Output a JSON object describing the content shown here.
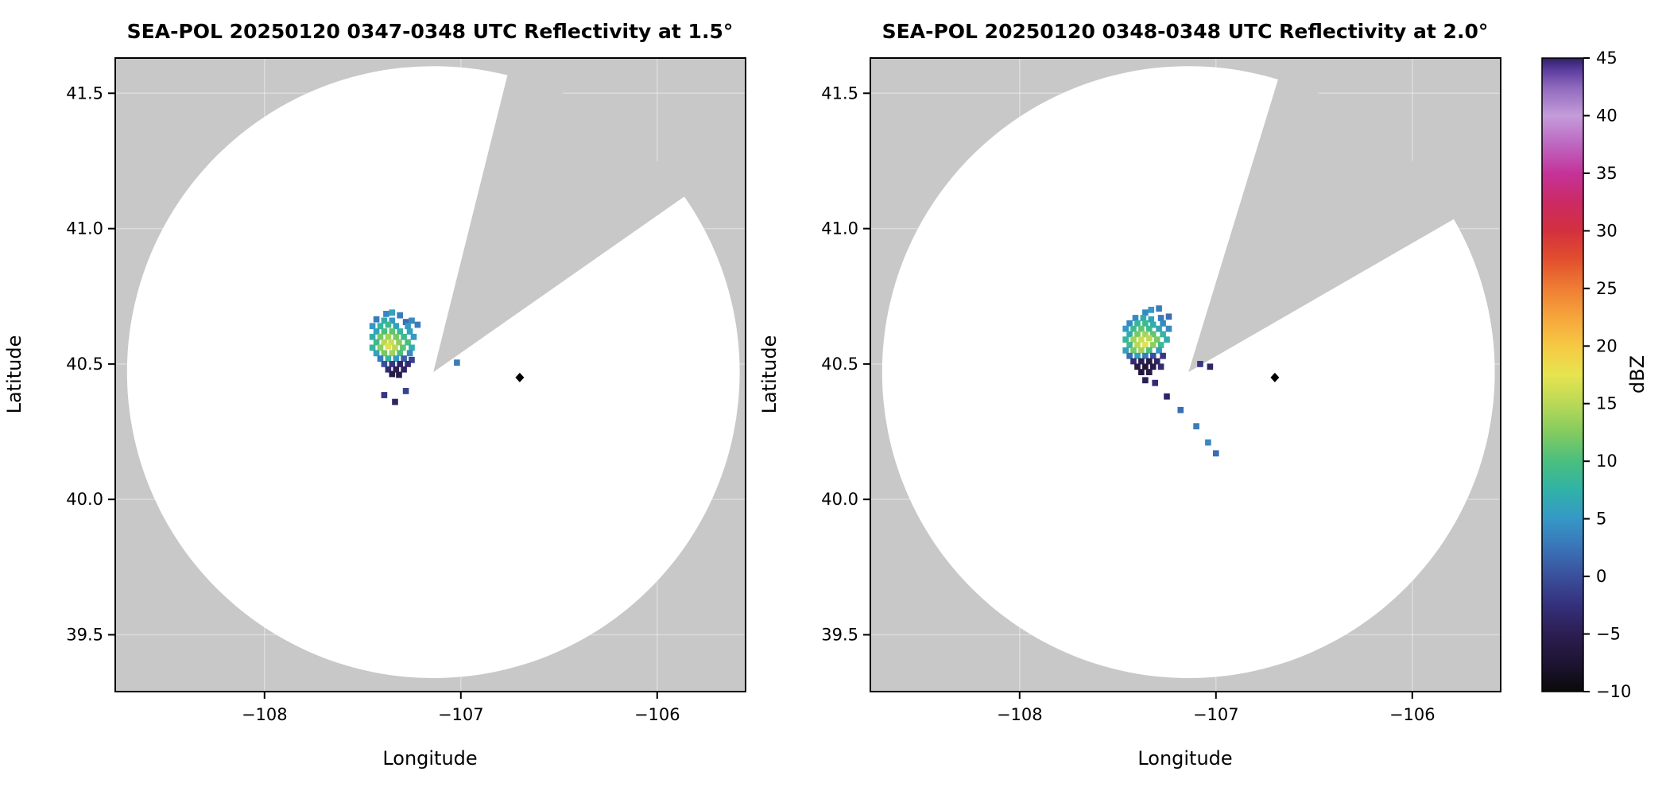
{
  "figure": {
    "background": "#ffffff",
    "panel_background": "#c8c8c8",
    "coverage_fill": "#ffffff",
    "grid_color": "rgba(255,255,255,0.35)",
    "spine_color": "#000000",
    "tick_color": "#000000"
  },
  "colorbar": {
    "label": "dBZ",
    "vmin": -10,
    "vmax": 45,
    "tick_values": [
      -10,
      -5,
      0,
      5,
      10,
      15,
      20,
      25,
      30,
      35,
      40,
      45
    ],
    "tick_labels": [
      "−10",
      "−5",
      "0",
      "5",
      "10",
      "15",
      "20",
      "25",
      "30",
      "35",
      "40",
      "45"
    ],
    "stops": [
      {
        "v": -10,
        "c": "#0a0a0a"
      },
      {
        "v": -7.5,
        "c": "#1e1433"
      },
      {
        "v": -5,
        "c": "#2c1e52"
      },
      {
        "v": -2.5,
        "c": "#35307d"
      },
      {
        "v": 0,
        "c": "#3a4f9b"
      },
      {
        "v": 2.5,
        "c": "#3a74b8"
      },
      {
        "v": 5,
        "c": "#3598c7"
      },
      {
        "v": 7.5,
        "c": "#31b2a7"
      },
      {
        "v": 10,
        "c": "#49bf7e"
      },
      {
        "v": 12.5,
        "c": "#83cb5f"
      },
      {
        "v": 15,
        "c": "#b9d957"
      },
      {
        "v": 17.5,
        "c": "#e7e44f"
      },
      {
        "v": 20,
        "c": "#f6c944"
      },
      {
        "v": 22.5,
        "c": "#f6a53c"
      },
      {
        "v": 25,
        "c": "#ef7d33"
      },
      {
        "v": 27.5,
        "c": "#e24f2d"
      },
      {
        "v": 30,
        "c": "#d3303e"
      },
      {
        "v": 32.5,
        "c": "#cc2a64"
      },
      {
        "v": 35,
        "c": "#c43399"
      },
      {
        "v": 37.5,
        "c": "#bd67c1"
      },
      {
        "v": 40,
        "c": "#c59cda"
      },
      {
        "v": 42.5,
        "c": "#8e68bd"
      },
      {
        "v": 44,
        "c": "#5b3c9c"
      },
      {
        "v": 45,
        "c": "#2e2066"
      }
    ]
  },
  "chart_data": [
    {
      "type": "heatmap",
      "subtype": "radar_ppi",
      "title": "SEA-POL 20250120 0347-0348 UTC Reflectivity at 1.5°",
      "xlabel": "Longitude",
      "ylabel": "Latitude",
      "units": "dBZ",
      "xlim": [
        -108.76,
        -105.55
      ],
      "ylim": [
        39.29,
        41.63
      ],
      "xtick_values": [
        -108,
        -107,
        -106
      ],
      "xtick_labels": [
        "−108",
        "−107",
        "−106"
      ],
      "ytick_values": [
        39.5,
        40.0,
        40.5,
        41.0,
        41.5
      ],
      "ytick_labels": [
        "39.5",
        "40.0",
        "40.5",
        "41.0",
        "41.5"
      ],
      "radar": {
        "lon": -107.14,
        "lat": 40.47,
        "radius_lon_deg": 1.56,
        "radius_lat_deg": 1.13
      },
      "blocked_sector_az_deg": [
        14,
        55
      ],
      "site_marker": {
        "lon": -106.7,
        "lat": 40.45,
        "shape": "diamond",
        "color": "#000000"
      },
      "echoes": [
        [
          -107.38,
          40.685,
          4
        ],
        [
          -107.35,
          40.69,
          6
        ],
        [
          -107.31,
          40.68,
          3
        ],
        [
          -107.43,
          40.665,
          3
        ],
        [
          -107.39,
          40.66,
          7
        ],
        [
          -107.35,
          40.66,
          5
        ],
        [
          -107.28,
          40.655,
          2
        ],
        [
          -107.25,
          40.66,
          4
        ],
        [
          -107.45,
          40.64,
          5
        ],
        [
          -107.41,
          40.64,
          8
        ],
        [
          -107.37,
          40.645,
          9
        ],
        [
          -107.33,
          40.64,
          6
        ],
        [
          -107.27,
          40.64,
          5
        ],
        [
          -107.22,
          40.645,
          3
        ],
        [
          -107.43,
          40.62,
          6
        ],
        [
          -107.39,
          40.62,
          10
        ],
        [
          -107.35,
          40.62,
          11
        ],
        [
          -107.31,
          40.62,
          8
        ],
        [
          -107.26,
          40.62,
          6
        ],
        [
          -107.45,
          40.6,
          7
        ],
        [
          -107.41,
          40.6,
          12
        ],
        [
          -107.37,
          40.6,
          14
        ],
        [
          -107.33,
          40.6,
          12
        ],
        [
          -107.29,
          40.6,
          9
        ],
        [
          -107.24,
          40.6,
          5
        ],
        [
          -107.43,
          40.58,
          9
        ],
        [
          -107.39,
          40.58,
          15
        ],
        [
          -107.355,
          40.58,
          16
        ],
        [
          -107.315,
          40.58,
          13
        ],
        [
          -107.27,
          40.58,
          10
        ],
        [
          -107.45,
          40.56,
          8
        ],
        [
          -107.41,
          40.56,
          13
        ],
        [
          -107.37,
          40.565,
          17
        ],
        [
          -107.335,
          40.56,
          15
        ],
        [
          -107.295,
          40.56,
          11
        ],
        [
          -107.25,
          40.56,
          7
        ],
        [
          -107.43,
          40.54,
          6
        ],
        [
          -107.39,
          40.54,
          12
        ],
        [
          -107.35,
          40.54,
          14
        ],
        [
          -107.31,
          40.54,
          10
        ],
        [
          -107.26,
          40.54,
          4
        ],
        [
          -107.41,
          40.52,
          3
        ],
        [
          -107.37,
          40.52,
          8
        ],
        [
          -107.33,
          40.52,
          5
        ],
        [
          -107.29,
          40.52,
          1
        ],
        [
          -107.25,
          40.515,
          -1
        ],
        [
          -107.39,
          40.5,
          0
        ],
        [
          -107.35,
          40.5,
          -2
        ],
        [
          -107.31,
          40.5,
          -4
        ],
        [
          -107.27,
          40.5,
          -3
        ],
        [
          -107.37,
          40.48,
          -3
        ],
        [
          -107.33,
          40.48,
          -5
        ],
        [
          -107.29,
          40.48,
          -4
        ],
        [
          -107.35,
          40.463,
          -6
        ],
        [
          -107.315,
          40.46,
          -6
        ],
        [
          -107.39,
          40.385,
          -2
        ],
        [
          -107.335,
          40.36,
          -4
        ],
        [
          -107.28,
          40.4,
          -1
        ],
        [
          -107.02,
          40.505,
          3
        ]
      ]
    },
    {
      "type": "heatmap",
      "subtype": "radar_ppi",
      "title": "SEA-POL 20250120 0348-0348 UTC Reflectivity at 2.0°",
      "xlabel": "Longitude",
      "ylabel": "Latitude",
      "units": "dBZ",
      "xlim": [
        -108.76,
        -105.55
      ],
      "ylim": [
        39.29,
        41.63
      ],
      "xtick_values": [
        -108,
        -107,
        -106
      ],
      "xtick_labels": [
        "−108",
        "−107",
        "−106"
      ],
      "ytick_values": [
        39.5,
        40.0,
        40.5,
        41.0,
        41.5
      ],
      "ytick_labels": [
        "39.5",
        "40.0",
        "40.5",
        "41.0",
        "41.5"
      ],
      "radar": {
        "lon": -107.14,
        "lat": 40.47,
        "radius_lon_deg": 1.56,
        "radius_lat_deg": 1.13
      },
      "blocked_sector_az_deg": [
        17,
        60
      ],
      "site_marker": {
        "lon": -106.7,
        "lat": 40.45,
        "shape": "diamond",
        "color": "#000000"
      },
      "echoes": [
        [
          -107.33,
          40.7,
          5
        ],
        [
          -107.29,
          40.705,
          3
        ],
        [
          -107.36,
          40.69,
          4
        ],
        [
          -107.41,
          40.67,
          4
        ],
        [
          -107.37,
          40.67,
          7
        ],
        [
          -107.33,
          40.665,
          6
        ],
        [
          -107.28,
          40.67,
          3
        ],
        [
          -107.24,
          40.675,
          2
        ],
        [
          -107.44,
          40.65,
          4
        ],
        [
          -107.4,
          40.65,
          8
        ],
        [
          -107.36,
          40.65,
          9
        ],
        [
          -107.32,
          40.645,
          7
        ],
        [
          -107.27,
          40.65,
          4
        ],
        [
          -107.46,
          40.63,
          5
        ],
        [
          -107.42,
          40.63,
          9
        ],
        [
          -107.38,
          40.63,
          11
        ],
        [
          -107.34,
          40.63,
          9
        ],
        [
          -107.29,
          40.63,
          6
        ],
        [
          -107.24,
          40.63,
          4
        ],
        [
          -107.44,
          40.61,
          7
        ],
        [
          -107.4,
          40.61,
          12
        ],
        [
          -107.36,
          40.61,
          14
        ],
        [
          -107.32,
          40.61,
          11
        ],
        [
          -107.27,
          40.61,
          8
        ],
        [
          -107.46,
          40.59,
          8
        ],
        [
          -107.42,
          40.59,
          14
        ],
        [
          -107.38,
          40.59,
          16
        ],
        [
          -107.34,
          40.595,
          15
        ],
        [
          -107.3,
          40.59,
          12
        ],
        [
          -107.25,
          40.59,
          7
        ],
        [
          -107.44,
          40.57,
          9
        ],
        [
          -107.4,
          40.57,
          15
        ],
        [
          -107.36,
          40.57,
          17
        ],
        [
          -107.32,
          40.57,
          13
        ],
        [
          -107.28,
          40.57,
          9
        ],
        [
          -107.46,
          40.55,
          6
        ],
        [
          -107.42,
          40.55,
          12
        ],
        [
          -107.38,
          40.55,
          14
        ],
        [
          -107.34,
          40.55,
          10
        ],
        [
          -107.29,
          40.55,
          5
        ],
        [
          -107.44,
          40.53,
          2
        ],
        [
          -107.4,
          40.53,
          6
        ],
        [
          -107.36,
          40.53,
          3
        ],
        [
          -107.32,
          40.53,
          0
        ],
        [
          -107.27,
          40.53,
          -2
        ],
        [
          -107.42,
          40.51,
          -3
        ],
        [
          -107.38,
          40.51,
          -5
        ],
        [
          -107.34,
          40.51,
          -6
        ],
        [
          -107.3,
          40.51,
          -4
        ],
        [
          -107.4,
          40.49,
          -6
        ],
        [
          -107.36,
          40.49,
          -7
        ],
        [
          -107.32,
          40.49,
          -6
        ],
        [
          -107.28,
          40.49,
          -3
        ],
        [
          -107.38,
          40.47,
          -7
        ],
        [
          -107.34,
          40.47,
          -6
        ],
        [
          -107.36,
          40.44,
          -5
        ],
        [
          -107.31,
          40.43,
          -3
        ],
        [
          -107.08,
          40.5,
          -2
        ],
        [
          -107.03,
          40.49,
          -4
        ],
        [
          -107.25,
          40.38,
          -4
        ],
        [
          -107.18,
          40.33,
          2
        ],
        [
          -107.1,
          40.27,
          3
        ],
        [
          -107.04,
          40.21,
          4
        ],
        [
          -107.0,
          40.17,
          2
        ]
      ]
    }
  ]
}
